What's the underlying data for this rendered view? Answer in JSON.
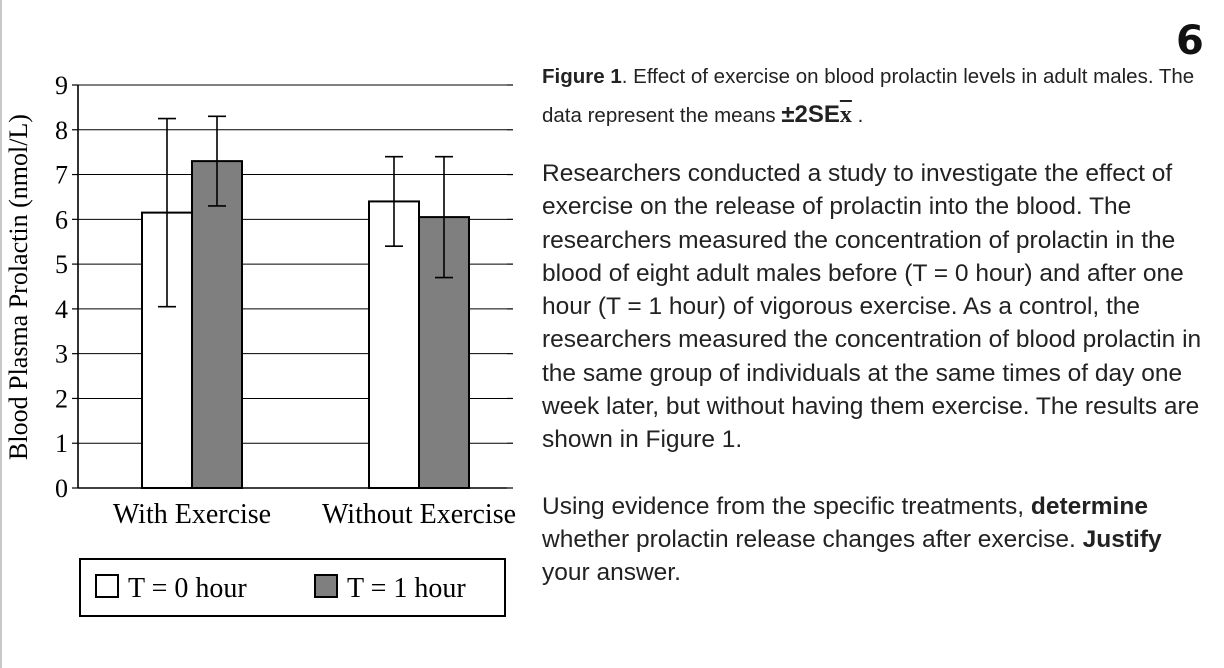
{
  "question_number": "6",
  "caption": {
    "label": "Figure 1",
    "text": ". Effect of exercise on blood prolactin levels in adult males. The data represent the means ",
    "se": "±2SE",
    "xbar": "x",
    "end": " ."
  },
  "paragraph": "Researchers conducted a study to investigate the effect of exercise on the release of prolactin into the blood. The researchers measured the concentration of prolactin in the blood of eight adult males before (T = 0 hour) and after one hour (T = 1 hour) of vigorous exercise. As a control, the researchers measured the concentration of blood prolactin in the same group of individuals at the same times of day one week later, but without having them exercise. The results are shown in Figure 1.",
  "prompt": {
    "part1": "Using evidence from the specific treatments, ",
    "bold1": "determine",
    "part2": " whether prolactin release changes after exercise. ",
    "bold2": "Justify",
    "part3": " your answer."
  },
  "colors": {
    "t0": "#ffffff",
    "t1": "#7f7f7f",
    "ink": "#000000"
  },
  "chart_data": {
    "type": "bar",
    "title": "",
    "xlabel": "",
    "ylabel": "Blood Plasma Prolactin (nmol/L)",
    "ylim": [
      0,
      9
    ],
    "yticks": [
      "0",
      "1",
      "2",
      "3",
      "4",
      "5",
      "6",
      "7",
      "8",
      "9"
    ],
    "categories": [
      "With Exercise",
      "Without Exercise"
    ],
    "series": [
      {
        "name": "T = 0 hour",
        "values": [
          6.15,
          6.4
        ],
        "errors": [
          2.1,
          1.0
        ],
        "color": "#ffffff"
      },
      {
        "name": "T = 1 hour",
        "values": [
          7.3,
          6.05
        ],
        "errors": [
          1.0,
          1.35
        ],
        "color": "#7f7f7f"
      }
    ],
    "grid": true,
    "legend": "bottom"
  }
}
